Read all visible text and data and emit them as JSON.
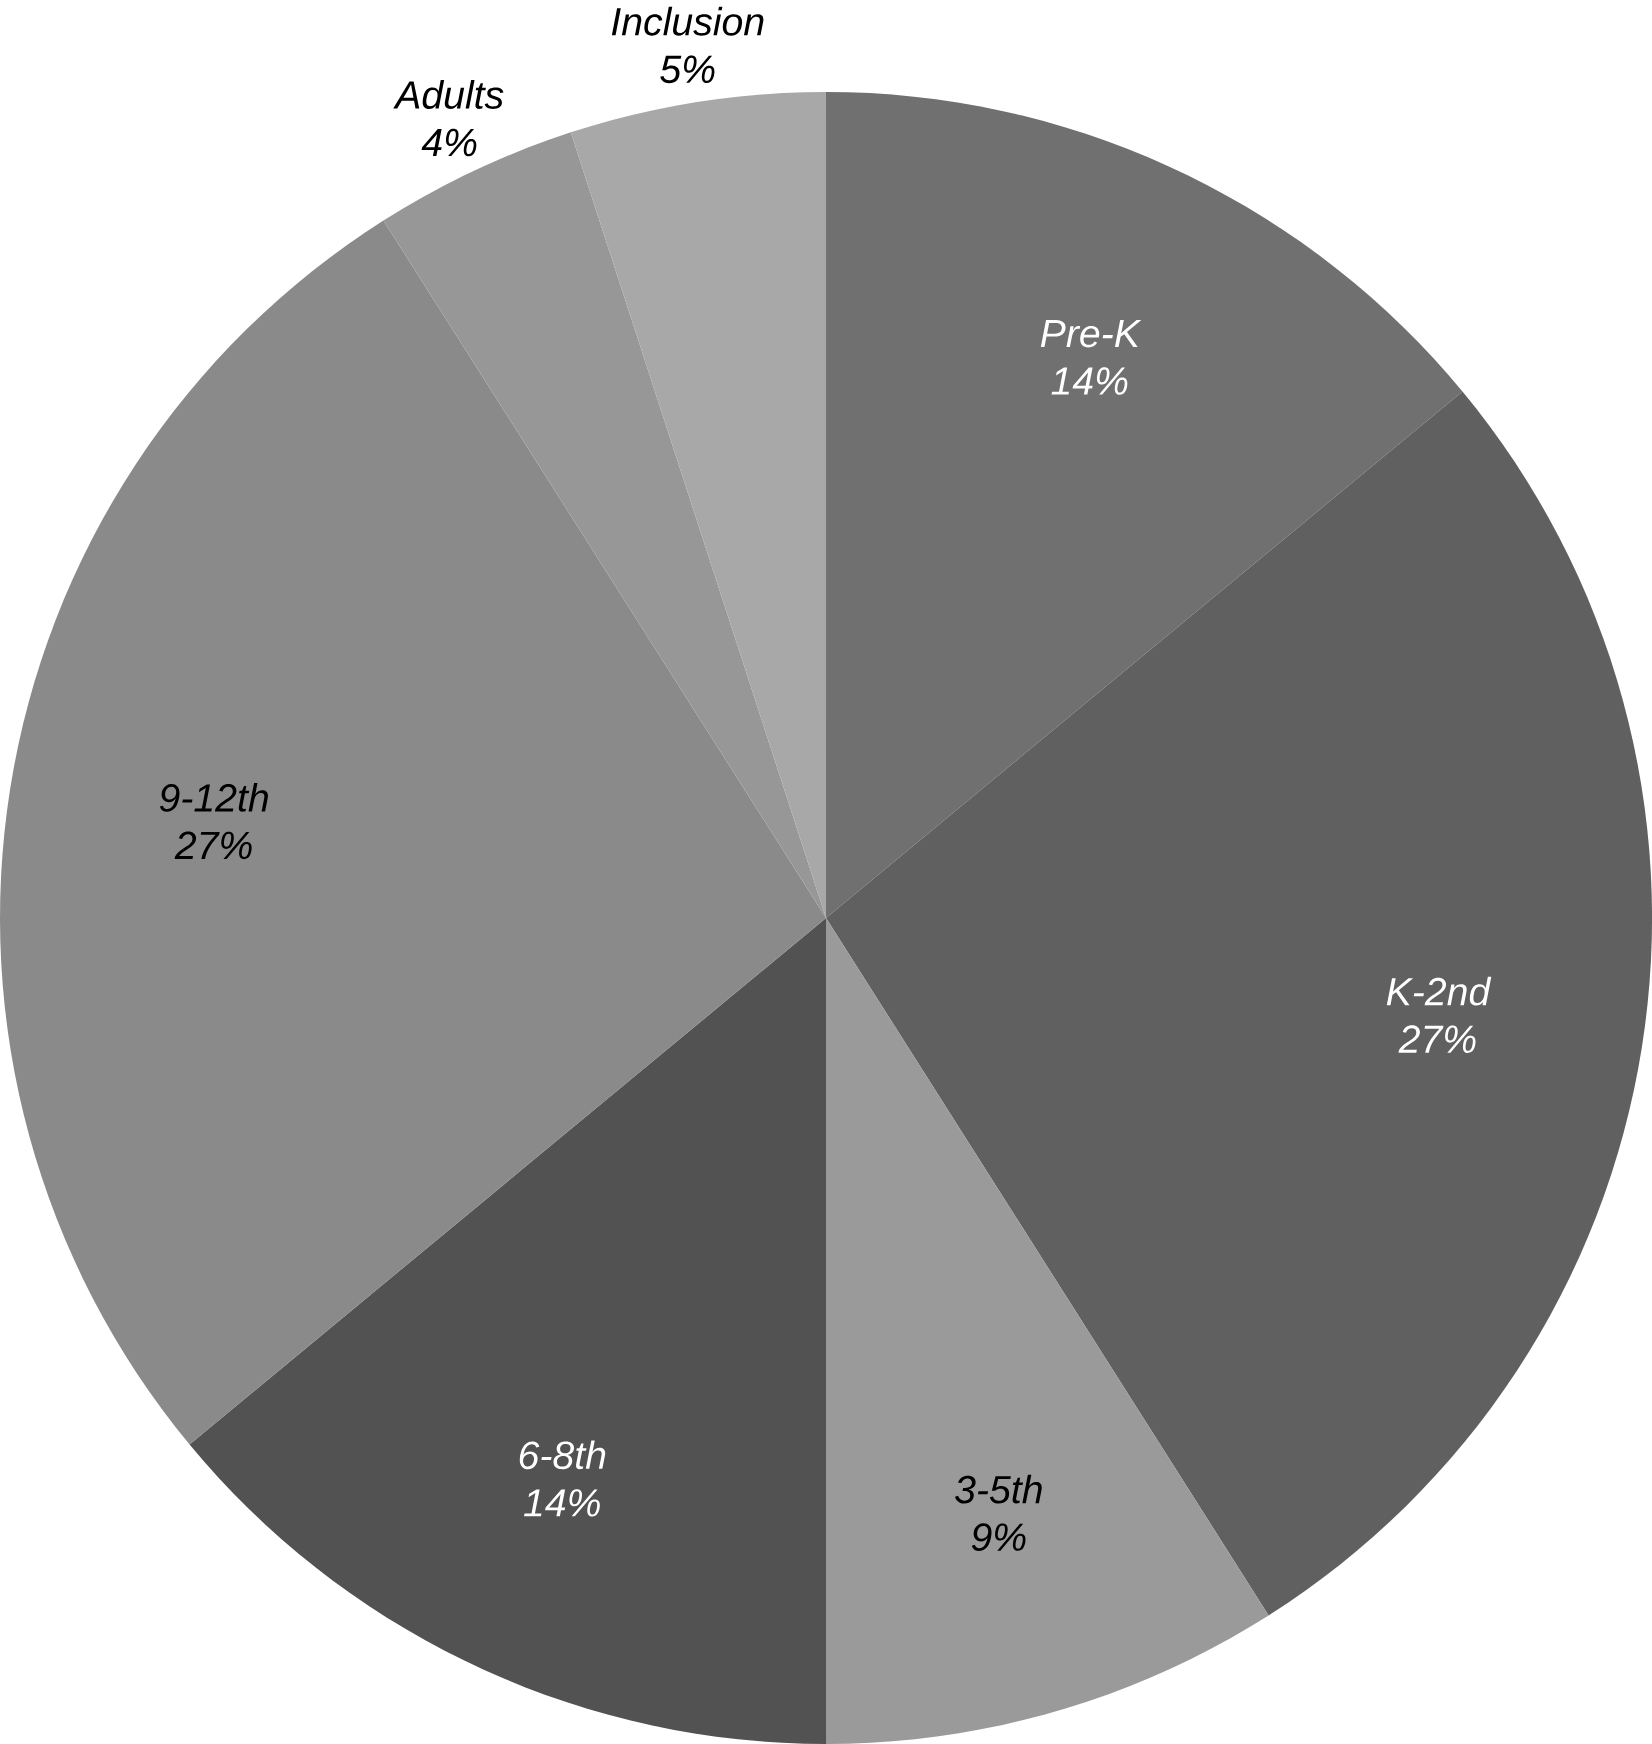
{
  "chart_data": {
    "type": "pie",
    "categories": [
      "Pre-K",
      "K-2nd",
      "3-5th",
      "6-8th",
      "9-12th",
      "Adults",
      "Inclusion"
    ],
    "values": [
      14,
      27,
      9,
      14,
      27,
      4,
      5
    ],
    "value_labels": [
      "14%",
      "27%",
      "9%",
      "14%",
      "27%",
      "4%",
      "5%"
    ],
    "colors": [
      "#707070",
      "#606060",
      "#9a9a9a",
      "#525252",
      "#8a8a8a",
      "#979797",
      "#a8a8a8"
    ]
  }
}
